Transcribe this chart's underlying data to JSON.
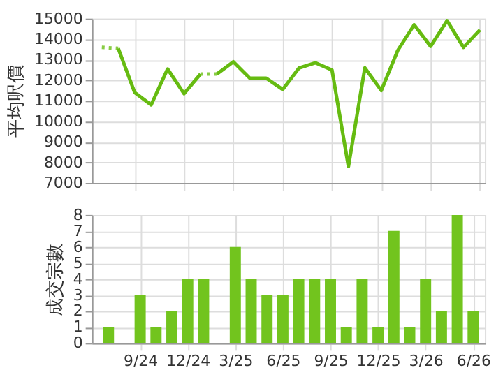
{
  "chart_data": [
    {
      "type": "line",
      "ylabel": "平均呎價",
      "ylim": [
        7000,
        15000
      ],
      "yticks": [
        7000,
        8000,
        9000,
        10000,
        11000,
        12000,
        13000,
        14000,
        15000
      ],
      "categories": [
        null,
        null,
        null,
        null,
        null,
        null,
        null,
        null,
        null,
        null,
        null,
        null,
        null,
        null,
        null,
        null,
        null,
        null,
        null,
        null,
        null,
        null,
        null,
        null
      ],
      "tick_labels": "y",
      "grid": true,
      "marker": "none",
      "series": [
        {
          "color": "#88cc44",
          "line_style": "dotted",
          "values": [
            13600,
            13550,
            null,
            null,
            null,
            null,
            null,
            null,
            null,
            null,
            null,
            null,
            null,
            null,
            null,
            null,
            null,
            null,
            null,
            null,
            null,
            null,
            null,
            null
          ]
        },
        {
          "color": "#66bb11",
          "line_style": "solid",
          "values": [
            null,
            13550,
            11400,
            10800,
            12550,
            11350,
            12300,
            null,
            null,
            null,
            null,
            null,
            null,
            null,
            null,
            null,
            null,
            null,
            null,
            null,
            null,
            null,
            null,
            null
          ]
        },
        {
          "color": "#88cc44",
          "line_style": "dotted",
          "values": [
            null,
            null,
            null,
            null,
            null,
            null,
            12300,
            12300,
            null,
            null,
            null,
            null,
            null,
            null,
            null,
            null,
            null,
            null,
            null,
            null,
            null,
            null,
            null,
            null
          ]
        },
        {
          "color": "#66bb11",
          "line_style": "solid",
          "values": [
            null,
            null,
            null,
            null,
            null,
            null,
            null,
            12300,
            12900,
            12100,
            12100,
            11550,
            12600,
            12850,
            12500,
            7800,
            12600,
            11500,
            13450,
            14700,
            13650,
            14900,
            13600,
            14450
          ]
        }
      ]
    },
    {
      "type": "bar",
      "ylabel": "成交宗數",
      "ylim": [
        0,
        8
      ],
      "yticks": [
        0,
        1,
        2,
        3,
        4,
        5,
        6,
        7,
        8
      ],
      "categories": [
        null,
        null,
        "9/24",
        null,
        null,
        "12/24",
        null,
        null,
        "3/25",
        null,
        null,
        "6/25",
        null,
        null,
        "9/25",
        null,
        null,
        "12/25",
        null,
        null,
        "3/26",
        null,
        null,
        "6/26"
      ],
      "grid": true,
      "values": [
        1,
        0,
        3,
        1,
        2,
        4,
        4,
        0,
        6,
        4,
        3,
        3,
        4,
        4,
        4,
        1,
        4,
        1,
        7,
        1,
        4,
        2,
        8,
        2
      ],
      "color": "#72c41e"
    }
  ]
}
